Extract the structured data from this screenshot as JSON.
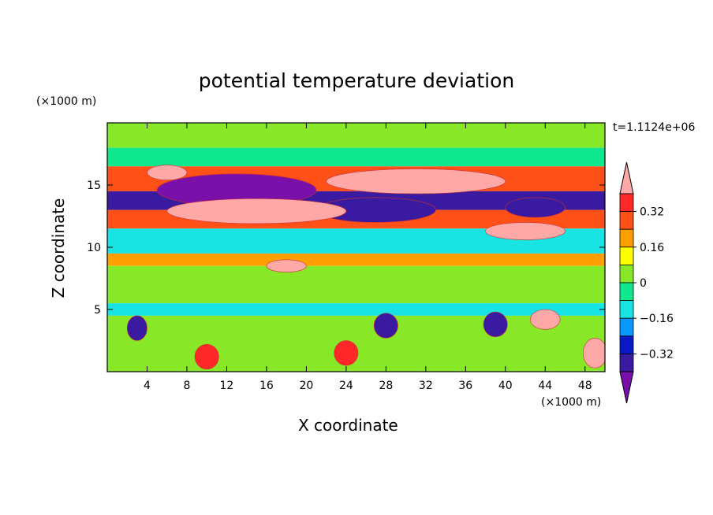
{
  "chart_data": {
    "type": "heatmap",
    "title": "potential temperature deviation",
    "xlabel": "X coordinate",
    "ylabel": "Z coordinate",
    "x_unit": "(×1000 m)",
    "y_unit": "(×1000 m)",
    "time_label": "t=1.1124e+06",
    "xlim": [
      0,
      50
    ],
    "ylim": [
      0,
      20
    ],
    "x_ticks": [
      4,
      8,
      12,
      16,
      20,
      24,
      28,
      32,
      36,
      40,
      44,
      48
    ],
    "y_ticks": [
      5,
      10,
      15
    ],
    "colorbar": {
      "levels": [
        -0.4,
        -0.32,
        -0.24,
        -0.16,
        -0.08,
        0,
        0.08,
        0.16,
        0.24,
        0.32,
        0.4
      ],
      "tick_labels": [
        "0.32",
        "0.16",
        "0",
        "−0.16",
        "−0.32"
      ],
      "tick_values": [
        0.32,
        0.16,
        0,
        -0.16,
        -0.32
      ],
      "colors": [
        "#7a10aa",
        "#3a1aa0",
        "#0a18c8",
        "#0898ff",
        "#18e4e4",
        "#10e890",
        "#88e828",
        "#ffff00",
        "#ffa000",
        "#ff5018",
        "#ff2828",
        "#ffa8a8"
      ]
    },
    "bands": [
      {
        "z0": 18,
        "z1": 20,
        "value": 0.05
      },
      {
        "z0": 16.5,
        "z1": 18,
        "value": -0.05
      },
      {
        "z0": 14.5,
        "z1": 16.5,
        "value": 0.25
      },
      {
        "z0": 13,
        "z1": 14.5,
        "value": -0.35
      },
      {
        "z0": 11.5,
        "z1": 13,
        "value": 0.3
      },
      {
        "z0": 9.5,
        "z1": 11.5,
        "value": -0.1
      },
      {
        "z0": 8.5,
        "z1": 9.5,
        "value": 0.2
      },
      {
        "z0": 5.5,
        "z1": 8.5,
        "value": 0.05
      },
      {
        "z0": 4.5,
        "z1": 5.5,
        "value": -0.12
      },
      {
        "z0": 0,
        "z1": 4.5,
        "value": 0.02
      }
    ],
    "features": [
      {
        "x": 13,
        "z": 14.6,
        "rx": 8,
        "rz": 1.3,
        "value": -0.42
      },
      {
        "x": 27,
        "z": 13.0,
        "rx": 6,
        "rz": 1.0,
        "value": -0.34
      },
      {
        "x": 43,
        "z": 13.2,
        "rx": 3,
        "rz": 0.8,
        "value": -0.36
      },
      {
        "x": 6,
        "z": 16.0,
        "rx": 2,
        "rz": 0.6,
        "value": 0.45
      },
      {
        "x": 15,
        "z": 12.9,
        "rx": 9,
        "rz": 1.0,
        "value": 0.45
      },
      {
        "x": 31,
        "z": 15.3,
        "rx": 9,
        "rz": 1.0,
        "value": 0.45
      },
      {
        "x": 42,
        "z": 11.3,
        "rx": 4,
        "rz": 0.7,
        "value": 0.45
      },
      {
        "x": 18,
        "z": 8.5,
        "rx": 2,
        "rz": 0.5,
        "value": 0.45
      },
      {
        "x": 44,
        "z": 4.2,
        "rx": 1.5,
        "rz": 0.8,
        "value": 0.45
      },
      {
        "x": 3,
        "z": 3.5,
        "rx": 1,
        "rz": 1.0,
        "value": -0.4
      },
      {
        "x": 28,
        "z": 3.7,
        "rx": 1.2,
        "rz": 1.0,
        "value": -0.4
      },
      {
        "x": 39,
        "z": 3.8,
        "rx": 1.2,
        "rz": 1.0,
        "value": -0.4
      },
      {
        "x": 10,
        "z": 1.2,
        "rx": 1.2,
        "rz": 1.0,
        "value": 0.35
      },
      {
        "x": 24,
        "z": 1.5,
        "rx": 1.2,
        "rz": 1.0,
        "value": 0.35
      },
      {
        "x": 49,
        "z": 1.5,
        "rx": 1.2,
        "rz": 1.2,
        "value": 0.4
      }
    ]
  }
}
